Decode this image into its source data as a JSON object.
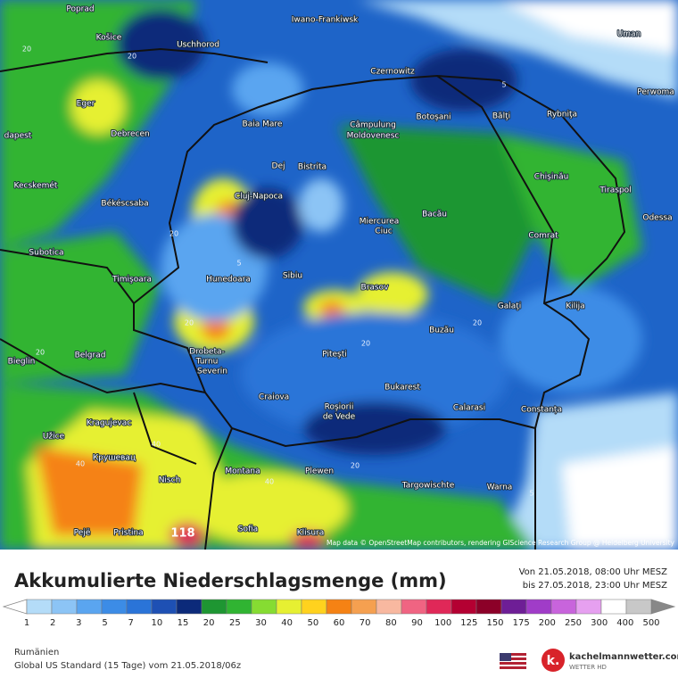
{
  "header": {
    "title": "Akkumulierte Niederschlagsmenge (mm)",
    "period_from": "Von 21.05.2018, 08:00 Uhr MESZ",
    "period_to": "bis 27.05.2018, 23:00 Uhr MESZ"
  },
  "map": {
    "attribution": "Map data © OpenStreetMap contributors, rendering GIScience Research Group @ Heidelberg University",
    "cities": [
      "Poprad",
      "Iwano-Frankiwsk",
      "Uman",
      "Košice",
      "Uschhorod",
      "Czernowitz",
      "Perwoma",
      "Eger",
      "Baia Mare",
      "Câmpulung",
      "Moldovenesc",
      "Botoşani",
      "Bălţi",
      "Rybniţa",
      "dapest",
      "Debrecen",
      "Dej",
      "Bistrita",
      "Chişinău",
      "Kecskemét",
      "Tiraspol",
      "Cluj-Napoca",
      "Békéscsaba",
      "Miercurea",
      "Ciuc",
      "Bacău",
      "Odessa",
      "Subotica",
      "Comrat",
      "Sibiu",
      "Hunedoara",
      "Timişoara",
      "Brasov",
      "Galaţi",
      "Kilija",
      "Drobeta-",
      "Turnu",
      "Severin",
      "Buzău",
      "Piteşti",
      "Belgrad",
      "Bieglin",
      "Craiova",
      "Bukarest",
      "Calarasi",
      "Constanța",
      "Roşiorii",
      "de Vede",
      "Kragujevac",
      "Užice",
      "Крушевац",
      "Montana",
      "Plewen",
      "Nisch",
      "Targowischte",
      "Warna",
      "Pejë",
      "Pristina",
      "Sofia",
      "Klisura"
    ],
    "contour_labels": [
      "20",
      "20",
      "20",
      "5",
      "20",
      "40",
      "5",
      "20",
      "20",
      "40",
      "40",
      "20",
      "5",
      "20",
      "118"
    ]
  },
  "legend": {
    "levels": [
      1,
      2,
      3,
      5,
      7,
      10,
      15,
      20,
      25,
      30,
      40,
      50,
      60,
      70,
      80,
      90,
      100,
      125,
      150,
      175,
      200,
      250,
      300,
      400,
      500
    ],
    "colors": [
      "#b4dcf8",
      "#8cc4f5",
      "#5aa5f0",
      "#3c8ce6",
      "#2a74d8",
      "#1e50b4",
      "#0c2a7a",
      "#1e9632",
      "#30b432",
      "#86dc32",
      "#e6f032",
      "#ffd21e",
      "#f58214",
      "#f5a050",
      "#f8b8a0",
      "#f06482",
      "#e02858",
      "#b40032",
      "#8c0028",
      "#6e1e96",
      "#a03cc8",
      "#c864dc",
      "#e6a0f0",
      "#ffffff",
      "#c8c8c8"
    ]
  },
  "footer": {
    "region": "Rumänien",
    "model": "Global US Standard (15 Tage) vom 21.05.2018/06z",
    "brand": "kachelmannwetter.com",
    "brand_sub": "WETTER HD"
  }
}
